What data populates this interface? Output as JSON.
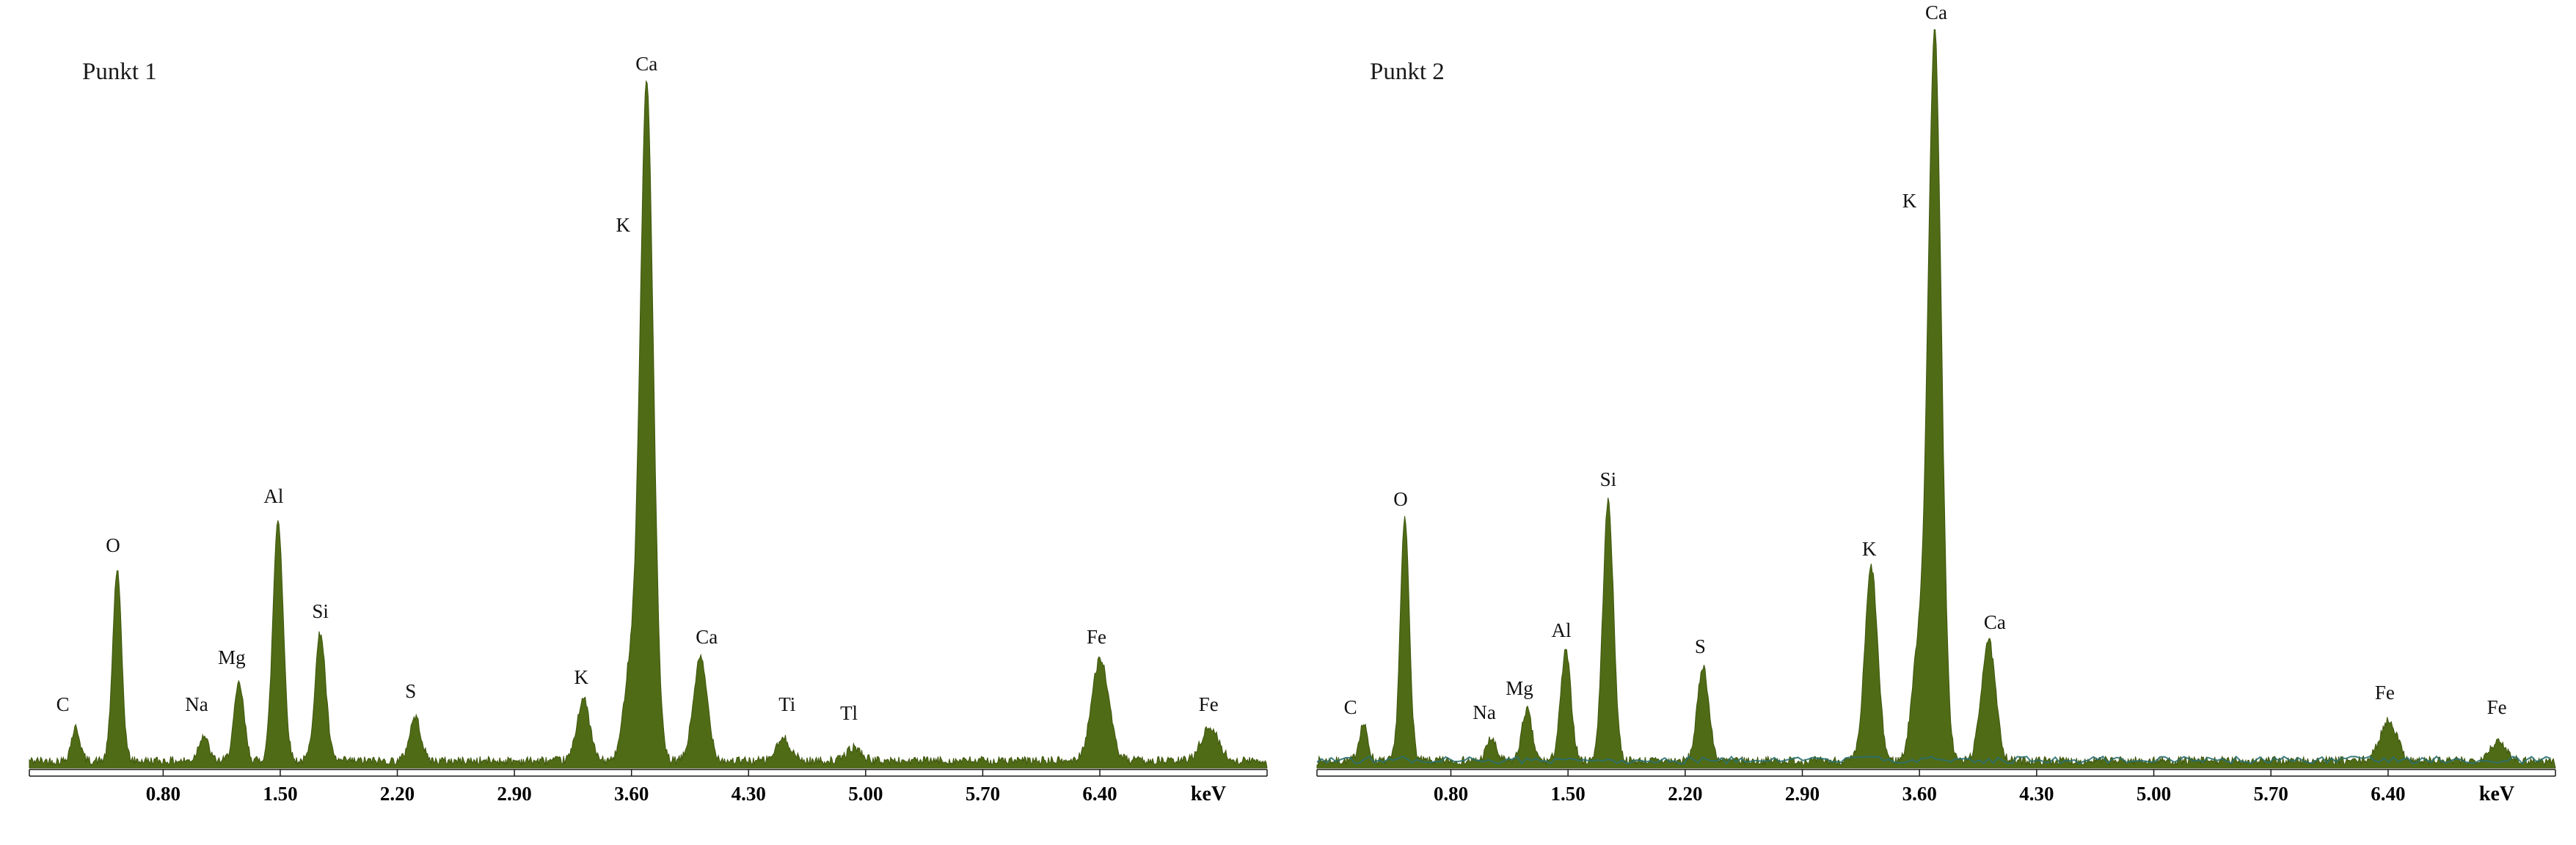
{
  "page": {
    "background": "#ffffff"
  },
  "chart_data": [
    {
      "type": "area",
      "title": "Punkt 1",
      "xlabel": "keV",
      "x_range": [
        0,
        7.4
      ],
      "x_ticks": [
        "0.80",
        "1.50",
        "2.20",
        "2.90",
        "3.60",
        "4.30",
        "5.00",
        "5.70",
        "6.40"
      ],
      "ylabel": "",
      "grid": false,
      "legend": "none",
      "series_color": "#4f6b16",
      "series_stroke": "#3e560d",
      "axis_color": "#1a1a1a",
      "overlay_color": null,
      "noise_seed": 42,
      "noise_amplitude": 0.012,
      "peaks": [
        {
          "element": "C",
          "kev": 0.277,
          "height": 0.045,
          "sigma": 0.026
        },
        {
          "element": "O",
          "kev": 0.525,
          "height": 0.26,
          "sigma": 0.027
        },
        {
          "element": "Na",
          "kev": 1.041,
          "height": 0.035,
          "sigma": 0.029
        },
        {
          "element": "Mg",
          "kev": 1.254,
          "height": 0.105,
          "sigma": 0.03
        },
        {
          "element": "Al",
          "kev": 1.487,
          "height": 0.33,
          "sigma": 0.031
        },
        {
          "element": "Si",
          "kev": 1.74,
          "height": 0.175,
          "sigma": 0.032
        },
        {
          "element": "S",
          "kev": 2.307,
          "height": 0.06,
          "sigma": 0.034
        },
        {
          "element": "K",
          "kev": 3.312,
          "height": 0.085,
          "sigma": 0.038
        },
        {
          "element": "K",
          "kev": 3.59,
          "height": 0.12,
          "sigma": 0.038
        },
        {
          "element": "Ca",
          "kev": 3.691,
          "height": 0.925,
          "sigma": 0.04
        },
        {
          "element": "Ca",
          "kev": 4.012,
          "height": 0.14,
          "sigma": 0.042
        },
        {
          "element": "Ti",
          "kev": 4.51,
          "height": 0.03,
          "sigma": 0.043
        },
        {
          "element": "Tl",
          "kev": 4.931,
          "height": 0.018,
          "sigma": 0.044
        },
        {
          "element": "Fe",
          "kev": 6.403,
          "height": 0.14,
          "sigma": 0.051
        },
        {
          "element": "Fe",
          "kev": 7.057,
          "height": 0.045,
          "sigma": 0.053
        }
      ],
      "labels": [
        {
          "text": "C",
          "kev": 0.2,
          "y": 0.078
        },
        {
          "text": "O",
          "kev": 0.5,
          "y": 0.295
        },
        {
          "text": "Na",
          "kev": 1.0,
          "y": 0.078
        },
        {
          "text": "Mg",
          "kev": 1.21,
          "y": 0.142
        },
        {
          "text": "Al",
          "kev": 1.46,
          "y": 0.362
        },
        {
          "text": "Si",
          "kev": 1.74,
          "y": 0.205
        },
        {
          "text": "S",
          "kev": 2.28,
          "y": 0.096
        },
        {
          "text": "K",
          "kev": 3.3,
          "y": 0.115
        },
        {
          "text": "K",
          "kev": 3.55,
          "y": 0.732
        },
        {
          "text": "Ca",
          "kev": 3.69,
          "y": 0.952
        },
        {
          "text": "Ca",
          "kev": 4.05,
          "y": 0.17
        },
        {
          "text": "Ti",
          "kev": 4.53,
          "y": 0.078
        },
        {
          "text": "Tl",
          "kev": 4.9,
          "y": 0.066
        },
        {
          "text": "Fe",
          "kev": 6.38,
          "y": 0.17
        },
        {
          "text": "Fe",
          "kev": 7.05,
          "y": 0.078
        }
      ]
    },
    {
      "type": "area",
      "title": "Punkt 2",
      "xlabel": "keV",
      "x_range": [
        0,
        7.4
      ],
      "x_ticks": [
        "0.80",
        "1.50",
        "2.20",
        "2.90",
        "3.60",
        "4.30",
        "5.00",
        "5.70",
        "6.40"
      ],
      "ylabel": "",
      "grid": false,
      "legend": "none",
      "series_color": "#4f6b16",
      "series_stroke": "#3e560d",
      "axis_color": "#1a1a1a",
      "overlay_color": "#2b6f70",
      "noise_seed": 7,
      "noise_amplitude": 0.012,
      "peaks": [
        {
          "element": "C",
          "kev": 0.277,
          "height": 0.05,
          "sigma": 0.026
        },
        {
          "element": "O",
          "kev": 0.525,
          "height": 0.33,
          "sigma": 0.027
        },
        {
          "element": "Na",
          "kev": 1.041,
          "height": 0.03,
          "sigma": 0.029
        },
        {
          "element": "Mg",
          "kev": 1.254,
          "height": 0.07,
          "sigma": 0.03
        },
        {
          "element": "Al",
          "kev": 1.487,
          "height": 0.15,
          "sigma": 0.031
        },
        {
          "element": "Si",
          "kev": 1.74,
          "height": 0.355,
          "sigma": 0.032
        },
        {
          "element": "S",
          "kev": 2.307,
          "height": 0.13,
          "sigma": 0.034
        },
        {
          "element": "K",
          "kev": 3.312,
          "height": 0.265,
          "sigma": 0.038
        },
        {
          "element": "K",
          "kev": 3.59,
          "height": 0.14,
          "sigma": 0.038
        },
        {
          "element": "Ca",
          "kev": 3.691,
          "height": 0.995,
          "sigma": 0.04
        },
        {
          "element": "Ca",
          "kev": 4.012,
          "height": 0.165,
          "sigma": 0.042
        },
        {
          "element": "Fe",
          "kev": 6.403,
          "height": 0.055,
          "sigma": 0.051
        },
        {
          "element": "Fe",
          "kev": 7.057,
          "height": 0.025,
          "sigma": 0.053
        }
      ],
      "labels": [
        {
          "text": "C",
          "kev": 0.2,
          "y": 0.074
        },
        {
          "text": "O",
          "kev": 0.5,
          "y": 0.358
        },
        {
          "text": "Na",
          "kev": 1.0,
          "y": 0.067
        },
        {
          "text": "Mg",
          "kev": 1.21,
          "y": 0.1
        },
        {
          "text": "Al",
          "kev": 1.46,
          "y": 0.179
        },
        {
          "text": "Si",
          "kev": 1.74,
          "y": 0.385
        },
        {
          "text": "S",
          "kev": 2.29,
          "y": 0.157
        },
        {
          "text": "K",
          "kev": 3.3,
          "y": 0.29
        },
        {
          "text": "K",
          "kev": 3.54,
          "y": 0.765
        },
        {
          "text": "Ca",
          "kev": 3.7,
          "y": 1.022
        },
        {
          "text": "Ca",
          "kev": 4.05,
          "y": 0.19
        },
        {
          "text": "Fe",
          "kev": 6.38,
          "y": 0.094
        },
        {
          "text": "Fe",
          "kev": 7.05,
          "y": 0.074
        }
      ]
    }
  ]
}
